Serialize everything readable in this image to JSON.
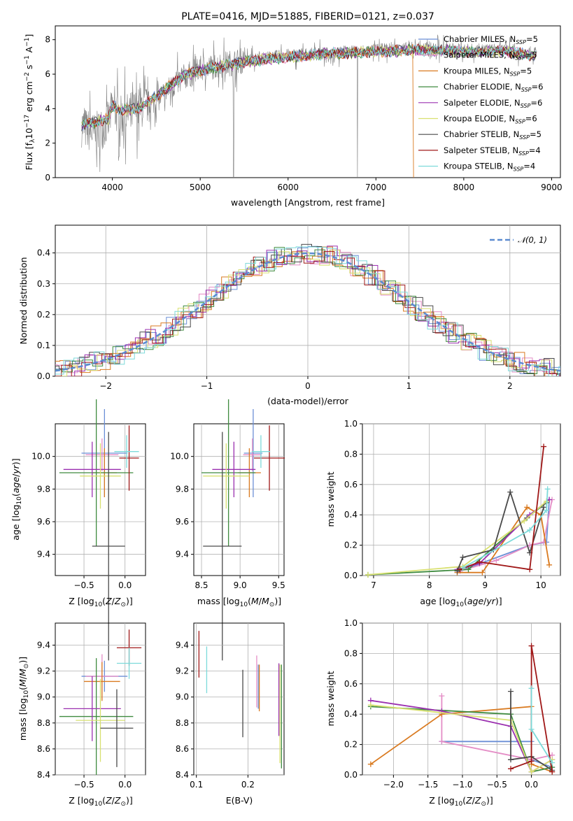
{
  "series_colors": {
    "chabrier_miles": "#6b8fd6",
    "salpeter_miles": "#e48dc6",
    "kroupa_miles": "#d97a20",
    "chabrier_elodie": "#3f8b3f",
    "salpeter_elodie": "#9b30b0",
    "kroupa_elodie": "#d8e070",
    "chabrier_stelib": "#4a4a4a",
    "salpeter_stelib": "#a01818",
    "kroupa_stelib": "#7ddada"
  },
  "chart_data": [
    {
      "type": "line",
      "title": "PLATE=0416, MJD=51885, FIBERID=0121, z=0.037",
      "xlabel": "wavelength [Angstrom, rest frame]",
      "ylabel": "Flux [f_λ 10^-17 erg cm^-2 s^-1 A^-1]",
      "xlim": [
        3350,
        9100
      ],
      "ylim": [
        0,
        8.8
      ],
      "xticks": [
        4000,
        5000,
        6000,
        7000,
        8000,
        9000
      ],
      "yticks": [
        0,
        2,
        4,
        6,
        8
      ],
      "legend": "top-right",
      "legend_entries": [
        "Chabrier MILES, N_SSP=5",
        "Salpeter MILES, N_SSP=5",
        "Kroupa MILES, N_SSP=5",
        "Chabrier ELODIE, N_SSP=6",
        "Salpeter ELODIE, N_SSP=6",
        "Kroupa ELODIE, N_SSP=6",
        "Chabrier STELIB, N_SSP=5",
        "Salpeter STELIB, N_SSP=4",
        "Kroupa STELIB, N_SSP=4"
      ],
      "data_x": [
        3650,
        3800,
        3950,
        4000,
        4100,
        4300,
        4500,
        4800,
        5000,
        5500,
        6000,
        6500,
        7000,
        7500,
        8000,
        8500,
        8800
      ],
      "data_y": [
        3.0,
        2.5,
        3.2,
        4.0,
        3.5,
        4.0,
        4.5,
        5.8,
        6.3,
        6.8,
        7.1,
        7.2,
        7.4,
        7.5,
        7.4,
        7.4,
        7.2
      ],
      "model_y": [
        3.0,
        3.2,
        3.4,
        4.2,
        3.9,
        4.0,
        4.7,
        5.9,
        6.2,
        6.7,
        7.0,
        7.2,
        7.3,
        7.4,
        7.3,
        7.3,
        7.1
      ]
    },
    {
      "type": "bar",
      "xlabel": "(data-model)/error",
      "ylabel": "Normed distribution",
      "xlim": [
        -2.5,
        2.5
      ],
      "ylim": [
        0,
        0.49
      ],
      "xticks": [
        -2,
        -1,
        0,
        1,
        2
      ],
      "yticks": [
        0.0,
        0.1,
        0.2,
        0.3,
        0.4
      ],
      "legend": "top-right",
      "legend_entries": [
        "𝒩(0, 1)"
      ],
      "grid": true
    },
    {
      "type": "scatter",
      "xlabel": "Z [log10(Z/Z⊙)]",
      "ylabel": "age [log10(age/yr)]",
      "xlim": [
        -0.85,
        0.25
      ],
      "ylim": [
        9.27,
        10.2
      ],
      "xticks": [
        -0.5,
        0.0
      ],
      "yticks": [
        9.4,
        9.6,
        9.8,
        10.0
      ],
      "points": [
        {
          "series": "chabrier_miles",
          "x": -0.25,
          "y": 10.02,
          "xerr": 0.28,
          "yerr": 0.27
        },
        {
          "series": "salpeter_miles",
          "x": -0.28,
          "y": 10.01,
          "xerr": 0.2,
          "yerr": 0.1
        },
        {
          "series": "kroupa_miles",
          "x": -0.25,
          "y": 9.9,
          "xerr": 0.15,
          "yerr": 0.15
        },
        {
          "series": "chabrier_elodie",
          "x": -0.35,
          "y": 9.9,
          "xerr": 0.45,
          "yerr": 0.45
        },
        {
          "series": "salpeter_elodie",
          "x": -0.4,
          "y": 9.92,
          "xerr": 0.35,
          "yerr": 0.17
        },
        {
          "series": "kroupa_elodie",
          "x": -0.3,
          "y": 9.88,
          "xerr": 0.25,
          "yerr": 0.2
        },
        {
          "series": "chabrier_stelib",
          "x": -0.2,
          "y": 9.45,
          "xerr": 0.2,
          "yerr": 0.7
        },
        {
          "series": "salpeter_stelib",
          "x": 0.05,
          "y": 9.99,
          "xerr": 0.12,
          "yerr": 0.2
        },
        {
          "series": "kroupa_stelib",
          "x": 0.02,
          "y": 10.03,
          "xerr": 0.15,
          "yerr": 0.1
        }
      ]
    },
    {
      "type": "scatter",
      "xlabel": "mass [log10(M/M⊙)]",
      "ylabel": "",
      "xlim": [
        8.4,
        9.57
      ],
      "ylim": [
        9.27,
        10.2
      ],
      "xticks": [
        8.5,
        9.0,
        9.5
      ],
      "yticks": [
        9.4,
        9.6,
        9.8,
        10.0
      ],
      "points": [
        {
          "series": "chabrier_miles",
          "x": 9.17,
          "y": 10.02,
          "xerr": 0.12,
          "yerr": 0.27
        },
        {
          "series": "salpeter_miles",
          "x": 9.16,
          "y": 10.01,
          "xerr": 0.12,
          "yerr": 0.1
        },
        {
          "series": "kroupa_miles",
          "x": 9.12,
          "y": 9.9,
          "xerr": 0.15,
          "yerr": 0.15
        },
        {
          "series": "chabrier_elodie",
          "x": 8.85,
          "y": 9.9,
          "xerr": 0.35,
          "yerr": 0.45
        },
        {
          "series": "salpeter_elodie",
          "x": 8.92,
          "y": 9.92,
          "xerr": 0.28,
          "yerr": 0.17
        },
        {
          "series": "kroupa_elodie",
          "x": 8.82,
          "y": 9.88,
          "xerr": 0.3,
          "yerr": 0.2
        },
        {
          "series": "chabrier_stelib",
          "x": 8.77,
          "y": 9.45,
          "xerr": 0.25,
          "yerr": 0.7
        },
        {
          "series": "salpeter_stelib",
          "x": 9.38,
          "y": 9.99,
          "xerr": 0.2,
          "yerr": 0.2
        },
        {
          "series": "kroupa_stelib",
          "x": 9.27,
          "y": 10.03,
          "xerr": 0.12,
          "yerr": 0.1
        }
      ]
    },
    {
      "type": "line",
      "xlabel": "age [log10(age/yr)]",
      "ylabel": "mass weight",
      "xlim": [
        6.8,
        10.35
      ],
      "ylim": [
        0,
        1.0
      ],
      "xticks": [
        7,
        8,
        9,
        10
      ],
      "yticks": [
        0.0,
        0.2,
        0.4,
        0.6,
        0.8,
        1.0
      ],
      "grid": true,
      "series": [
        {
          "series": "chabrier_miles",
          "x": [
            8.5,
            8.7,
            9.8,
            10.1,
            10.15
          ],
          "y": [
            0.02,
            0.05,
            0.2,
            0.22,
            0.5
          ]
        },
        {
          "series": "salpeter_miles",
          "x": [
            8.55,
            9.2,
            9.8,
            10.05,
            10.2
          ],
          "y": [
            0.03,
            0.1,
            0.2,
            0.22,
            0.5
          ]
        },
        {
          "series": "kroupa_miles",
          "x": [
            8.5,
            8.95,
            9.75,
            10.0,
            10.15
          ],
          "y": [
            0.02,
            0.02,
            0.45,
            0.4,
            0.07
          ]
        },
        {
          "series": "chabrier_elodie",
          "x": [
            6.9,
            8.7,
            9.75,
            10.1
          ],
          "y": [
            0.005,
            0.04,
            0.38,
            0.48
          ]
        },
        {
          "series": "salpeter_elodie",
          "x": [
            8.5,
            8.9,
            9.8,
            10.15
          ],
          "y": [
            0.04,
            0.08,
            0.4,
            0.5
          ]
        },
        {
          "series": "kroupa_elodie",
          "x": [
            6.9,
            8.6,
            9.7,
            10.1
          ],
          "y": [
            0.005,
            0.06,
            0.36,
            0.49
          ]
        },
        {
          "series": "chabrier_stelib",
          "x": [
            8.5,
            8.6,
            9.15,
            9.45,
            9.8,
            10.05
          ],
          "y": [
            0.03,
            0.12,
            0.17,
            0.55,
            0.15,
            0.45
          ]
        },
        {
          "series": "salpeter_stelib",
          "x": [
            8.55,
            8.9,
            9.8,
            10.05
          ],
          "y": [
            0.04,
            0.09,
            0.04,
            0.85
          ]
        },
        {
          "series": "kroupa_stelib",
          "x": [
            8.6,
            9.8,
            10.1,
            10.12
          ],
          "y": [
            0.05,
            0.3,
            0.43,
            0.57
          ]
        }
      ]
    },
    {
      "type": "scatter",
      "xlabel": "Z [log10(Z/Z⊙)]",
      "ylabel": "mass [log10(M/M⊙)]",
      "xlim": [
        -0.85,
        0.25
      ],
      "ylim": [
        8.4,
        9.57
      ],
      "xticks": [
        -0.5,
        0.0
      ],
      "yticks": [
        8.4,
        8.6,
        8.8,
        9.0,
        9.2,
        9.4
      ],
      "points": [
        {
          "series": "chabrier_miles",
          "x": -0.25,
          "y": 9.16,
          "xerr": 0.28,
          "yerr": 0.12
        },
        {
          "series": "salpeter_miles",
          "x": -0.28,
          "y": 9.16,
          "xerr": 0.2,
          "yerr": 0.17
        },
        {
          "series": "kroupa_miles",
          "x": -0.28,
          "y": 9.12,
          "xerr": 0.22,
          "yerr": 0.15
        },
        {
          "series": "chabrier_elodie",
          "x": -0.35,
          "y": 8.85,
          "xerr": 0.45,
          "yerr": 0.45
        },
        {
          "series": "salpeter_elodie",
          "x": -0.4,
          "y": 8.91,
          "xerr": 0.35,
          "yerr": 0.25
        },
        {
          "series": "kroupa_elodie",
          "x": -0.3,
          "y": 8.82,
          "xerr": 0.3,
          "yerr": 0.32
        },
        {
          "series": "chabrier_stelib",
          "x": -0.1,
          "y": 8.76,
          "xerr": 0.2,
          "yerr": 0.3
        },
        {
          "series": "salpeter_stelib",
          "x": 0.05,
          "y": 9.38,
          "xerr": 0.15,
          "yerr": 0.14
        },
        {
          "series": "kroupa_stelib",
          "x": 0.05,
          "y": 9.26,
          "xerr": 0.15,
          "yerr": 0.12
        }
      ]
    },
    {
      "type": "scatter",
      "xlabel": "E(B-V)",
      "ylabel": "",
      "xlim": [
        0.095,
        0.27
      ],
      "ylim": [
        8.4,
        9.57
      ],
      "xticks": [
        0.1,
        0.2
      ],
      "yticks": [
        8.4,
        8.6,
        8.8,
        9.0,
        9.2,
        9.4
      ],
      "points": [
        {
          "series": "chabrier_miles",
          "x": 0.22,
          "y": 9.08,
          "xerr": 0.0,
          "yerr": 0.17
        },
        {
          "series": "salpeter_miles",
          "x": 0.217,
          "y": 9.12,
          "xerr": 0.0,
          "yerr": 0.2
        },
        {
          "series": "kroupa_miles",
          "x": 0.222,
          "y": 9.07,
          "xerr": 0.0,
          "yerr": 0.18
        },
        {
          "series": "chabrier_elodie",
          "x": 0.265,
          "y": 8.85,
          "xerr": 0.0,
          "yerr": 0.4
        },
        {
          "series": "salpeter_elodie",
          "x": 0.26,
          "y": 8.98,
          "xerr": 0.0,
          "yerr": 0.28
        },
        {
          "series": "kroupa_elodie",
          "x": 0.262,
          "y": 8.87,
          "xerr": 0.0,
          "yerr": 0.38
        },
        {
          "series": "chabrier_stelib",
          "x": 0.19,
          "y": 8.95,
          "xerr": 0.0,
          "yerr": 0.26
        },
        {
          "series": "salpeter_stelib",
          "x": 0.105,
          "y": 9.33,
          "xerr": 0.0,
          "yerr": 0.18
        },
        {
          "series": "kroupa_stelib",
          "x": 0.12,
          "y": 9.21,
          "xerr": 0.0,
          "yerr": 0.18
        }
      ]
    },
    {
      "type": "line",
      "xlabel": "Z [log10(Z/Z⊙)]",
      "ylabel": "mass weight",
      "xlim": [
        -2.45,
        0.42
      ],
      "ylim": [
        0,
        1.0
      ],
      "xticks": [
        -2.0,
        -1.5,
        -1.0,
        -0.5,
        0.0
      ],
      "yticks": [
        0.0,
        0.2,
        0.4,
        0.6,
        0.8,
        1.0
      ],
      "grid": true,
      "series": [
        {
          "series": "chabrier_miles",
          "x": [
            -1.3,
            0.0,
            0.0,
            0.3
          ],
          "y": [
            0.22,
            0.22,
            0.1,
            0.05
          ]
        },
        {
          "series": "salpeter_miles",
          "x": [
            -1.3,
            -1.3,
            0.0,
            0.3
          ],
          "y": [
            0.52,
            0.22,
            0.1,
            0.13
          ]
        },
        {
          "series": "kroupa_miles",
          "x": [
            -2.33,
            -1.3,
            0.0,
            0.0,
            0.3
          ],
          "y": [
            0.07,
            0.4,
            0.45,
            0.07,
            0.02
          ]
        },
        {
          "series": "chabrier_elodie",
          "x": [
            -2.33,
            -0.3,
            0.0,
            0.3
          ],
          "y": [
            0.45,
            0.4,
            0.02,
            0.05
          ]
        },
        {
          "series": "salpeter_elodie",
          "x": [
            -2.33,
            -1.3,
            -0.3,
            0.0,
            0.3
          ],
          "y": [
            0.49,
            0.42,
            0.32,
            0.02,
            0.1
          ]
        },
        {
          "series": "kroupa_elodie",
          "x": [
            -2.33,
            -0.3,
            0.0,
            0.3
          ],
          "y": [
            0.46,
            0.36,
            0.02,
            0.1
          ]
        },
        {
          "series": "chabrier_stelib",
          "x": [
            -0.3,
            -0.3,
            0.0,
            0.3
          ],
          "y": [
            0.55,
            0.1,
            0.12,
            0.03
          ]
        },
        {
          "series": "salpeter_stelib",
          "x": [
            -0.3,
            0.0,
            0.0,
            0.3
          ],
          "y": [
            0.04,
            0.09,
            0.85,
            0.02
          ]
        },
        {
          "series": "kroupa_stelib",
          "x": [
            0.0,
            0.0,
            0.3
          ],
          "y": [
            0.57,
            0.3,
            0.08
          ]
        }
      ]
    }
  ]
}
